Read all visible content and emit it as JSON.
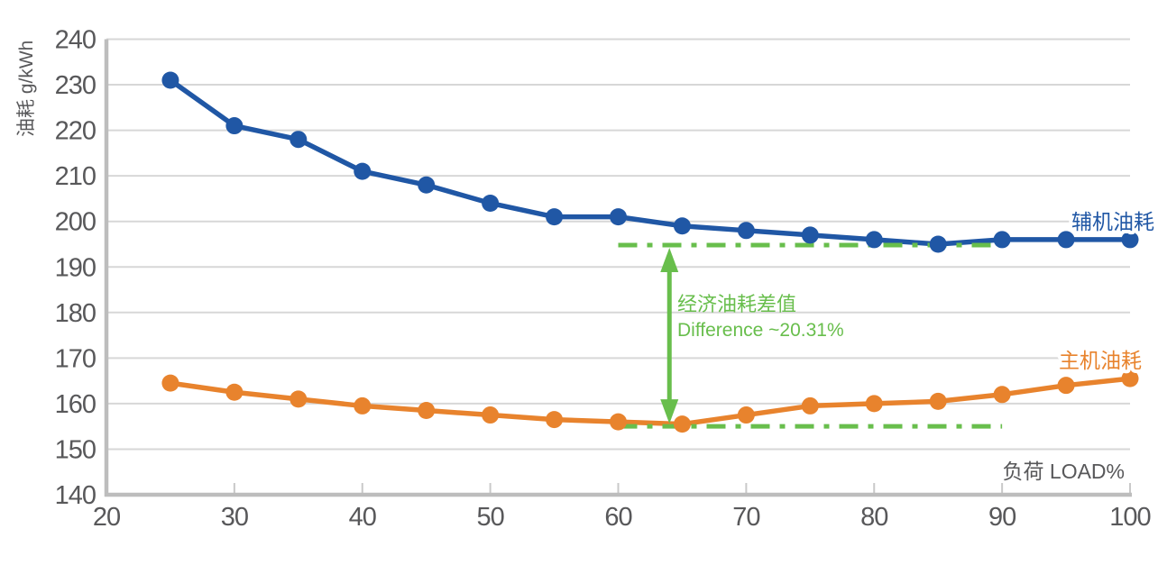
{
  "colors": {
    "background": "#FFFFFF",
    "aux_series_blue": "#2057A5",
    "main_series_orange": "#E8832D",
    "annotation_green": "#68BE4C",
    "grid_line": "#D7D7D7",
    "axis_line": "#BDBDBD",
    "tick_text": "#58585A"
  },
  "chart_data": {
    "type": "line",
    "title": "",
    "ylabel": "油耗 g/kWh",
    "xlabel": "负荷 LOAD%",
    "xlim": [
      20,
      100
    ],
    "ylim": [
      140,
      240
    ],
    "x_ticks": [
      20,
      30,
      40,
      50,
      60,
      70,
      80,
      90,
      100
    ],
    "y_ticks": [
      140,
      150,
      160,
      170,
      180,
      190,
      200,
      210,
      220,
      230,
      240
    ],
    "grid": "horizontal-only",
    "legend_position": "inline-labels-at-line-end",
    "x": [
      25,
      30,
      35,
      40,
      45,
      50,
      55,
      60,
      65,
      70,
      75,
      80,
      85,
      90,
      95,
      100
    ],
    "series": [
      {
        "name": "辅机油耗",
        "color": "#2057A5",
        "values": [
          231,
          221,
          218,
          211,
          208,
          204,
          201,
          201,
          199,
          198,
          197,
          196,
          195,
          196,
          196,
          196
        ]
      },
      {
        "name": "主机油耗",
        "color": "#E8832D",
        "values": [
          164.5,
          162.5,
          161,
          159.5,
          158.5,
          157.5,
          156.5,
          156,
          155.5,
          157.5,
          159.5,
          160,
          160.5,
          162,
          164,
          165.5
        ]
      }
    ],
    "reference_lines": [
      {
        "level": 194.8,
        "from_load": 60,
        "to_load": 90,
        "style": "dash-dot",
        "color": "#68BE4C"
      },
      {
        "level": 155.0,
        "from_load": 60,
        "to_load": 90,
        "style": "dash-dot",
        "color": "#68BE4C"
      }
    ],
    "annotation": {
      "arrow_load": 64,
      "line1": "经济油耗差值",
      "line2": "Difference ~20.31%"
    }
  }
}
